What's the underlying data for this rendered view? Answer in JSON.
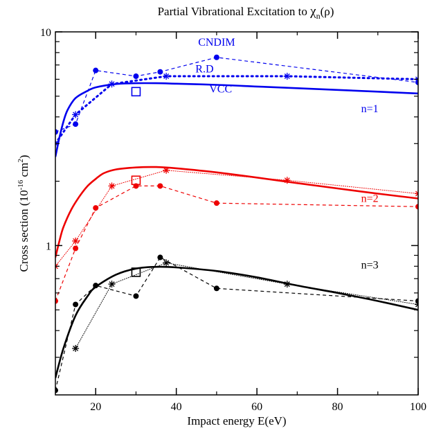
{
  "chart_data": {
    "type": "line",
    "title": "Partial Vibrational Excitation to χn(ρ)",
    "title_main": "Partial Vibrational Excitation to ",
    "title_symbol": "χ",
    "title_sub": "n",
    "title_arg": "(ρ)",
    "xlabel": "Impact energy E(eV)",
    "ylabel_prefix": "Cross section (10",
    "ylabel_exp1": "-16",
    "ylabel_mid": " cm",
    "ylabel_exp2": "2",
    "ylabel_suffix": ")",
    "x_scale": "linear",
    "y_scale": "log",
    "xlim": [
      10,
      100
    ],
    "ylim": [
      0.2,
      10
    ],
    "x_ticks": [
      20,
      40,
      60,
      80,
      100
    ],
    "x_tick_labels": [
      "20",
      "40",
      "60",
      "80",
      "100"
    ],
    "x_minor_ticks": [
      30,
      50,
      70,
      90
    ],
    "y_ticks": [
      1,
      10
    ],
    "y_tick_labels": [
      "1",
      "10"
    ],
    "y_minor_ticks": [
      0.3,
      0.4,
      0.5,
      0.6,
      0.7,
      0.8,
      0.9,
      2,
      3,
      4,
      5,
      6,
      7,
      8,
      9
    ],
    "grid": false,
    "colors": {
      "n1": "#0000ee",
      "n2": "#ee0000",
      "n3": "#000000"
    },
    "annotations": [
      {
        "text": "CNDIM",
        "x": 50,
        "y": 8.6,
        "color": "#0000ee",
        "size": "small"
      },
      {
        "text": "R.D",
        "x": 47,
        "y": 6.45,
        "color": "#0000ee",
        "size": "large"
      },
      {
        "text": "VCC",
        "x": 51,
        "y": 5.2,
        "color": "#0000ee",
        "size": "small"
      },
      {
        "text": "n=1",
        "x": 88,
        "y": 4.2,
        "color": "#0000ee",
        "size": "large"
      },
      {
        "text": "n=2",
        "x": 88,
        "y": 1.6,
        "color": "#ee0000",
        "size": "large"
      },
      {
        "text": "n=3",
        "x": 88,
        "y": 0.78,
        "color": "#000000",
        "size": "large"
      }
    ],
    "series": [
      {
        "group": "n1",
        "style": "solid-curve",
        "color": "#0000ee",
        "x": [
          10,
          11,
          12,
          13,
          15,
          18,
          20,
          25,
          30,
          35,
          40,
          50,
          60,
          70,
          80,
          90,
          100
        ],
        "y": [
          2.6,
          3.2,
          3.8,
          4.3,
          4.9,
          5.3,
          5.5,
          5.7,
          5.75,
          5.75,
          5.72,
          5.65,
          5.55,
          5.45,
          5.35,
          5.25,
          5.15
        ]
      },
      {
        "group": "n1",
        "style": "dashed-circles",
        "color": "#0000ee",
        "x": [
          10,
          15,
          20,
          30,
          36,
          50,
          100
        ],
        "y": [
          3.4,
          3.7,
          6.6,
          6.2,
          6.5,
          7.6,
          5.8
        ]
      },
      {
        "group": "n1",
        "style": "dotted-stars",
        "color": "#0000ee",
        "x": [
          10,
          15,
          24,
          37.5,
          67.5,
          100
        ],
        "y": [
          3.0,
          4.1,
          5.7,
          6.2,
          6.2,
          6.0
        ]
      },
      {
        "group": "n2",
        "style": "solid-curve",
        "color": "#ee0000",
        "x": [
          10,
          11,
          12,
          14,
          16,
          18,
          20,
          22,
          25,
          30,
          35,
          40,
          50,
          60,
          70,
          80,
          90,
          100
        ],
        "y": [
          0.88,
          1.05,
          1.22,
          1.48,
          1.7,
          1.9,
          2.05,
          2.18,
          2.27,
          2.32,
          2.33,
          2.3,
          2.2,
          2.08,
          1.96,
          1.85,
          1.75,
          1.66
        ]
      },
      {
        "group": "n2",
        "style": "dashed-circles",
        "color": "#ee0000",
        "x": [
          10,
          15,
          20,
          30,
          36,
          50,
          100
        ],
        "y": [
          0.55,
          0.97,
          1.5,
          1.9,
          1.9,
          1.58,
          1.52
        ]
      },
      {
        "group": "n2",
        "style": "dotted-stars",
        "color": "#ee0000",
        "x": [
          10,
          15,
          24,
          37.5,
          67.5,
          100
        ],
        "y": [
          0.8,
          1.05,
          1.9,
          2.25,
          2.02,
          1.75
        ]
      },
      {
        "group": "n3",
        "style": "solid-curve",
        "color": "#000000",
        "x": [
          10,
          12,
          15,
          18,
          20,
          25,
          30,
          35,
          40,
          50,
          60,
          70,
          80,
          90,
          100
        ],
        "y": [
          0.24,
          0.33,
          0.47,
          0.58,
          0.64,
          0.73,
          0.78,
          0.795,
          0.79,
          0.76,
          0.71,
          0.65,
          0.6,
          0.55,
          0.5
        ]
      },
      {
        "group": "n3",
        "style": "dashed-circles",
        "color": "#000000",
        "x": [
          10,
          15,
          20,
          30,
          36,
          50,
          100
        ],
        "y": [
          0.21,
          0.53,
          0.65,
          0.58,
          0.88,
          0.63,
          0.55
        ]
      },
      {
        "group": "n3",
        "style": "dotted-stars",
        "color": "#000000",
        "x": [
          15,
          24,
          37.5,
          67.5,
          100
        ],
        "y": [
          0.33,
          0.66,
          0.83,
          0.66,
          0.53
        ]
      }
    ],
    "square_markers": [
      {
        "group": "n1",
        "x": 30,
        "y": 5.25,
        "color": "#0000ee"
      },
      {
        "group": "n2",
        "x": 30,
        "y": 2.02,
        "color": "#ee0000"
      },
      {
        "group": "n3",
        "x": 30,
        "y": 0.75,
        "color": "#000000"
      }
    ]
  }
}
